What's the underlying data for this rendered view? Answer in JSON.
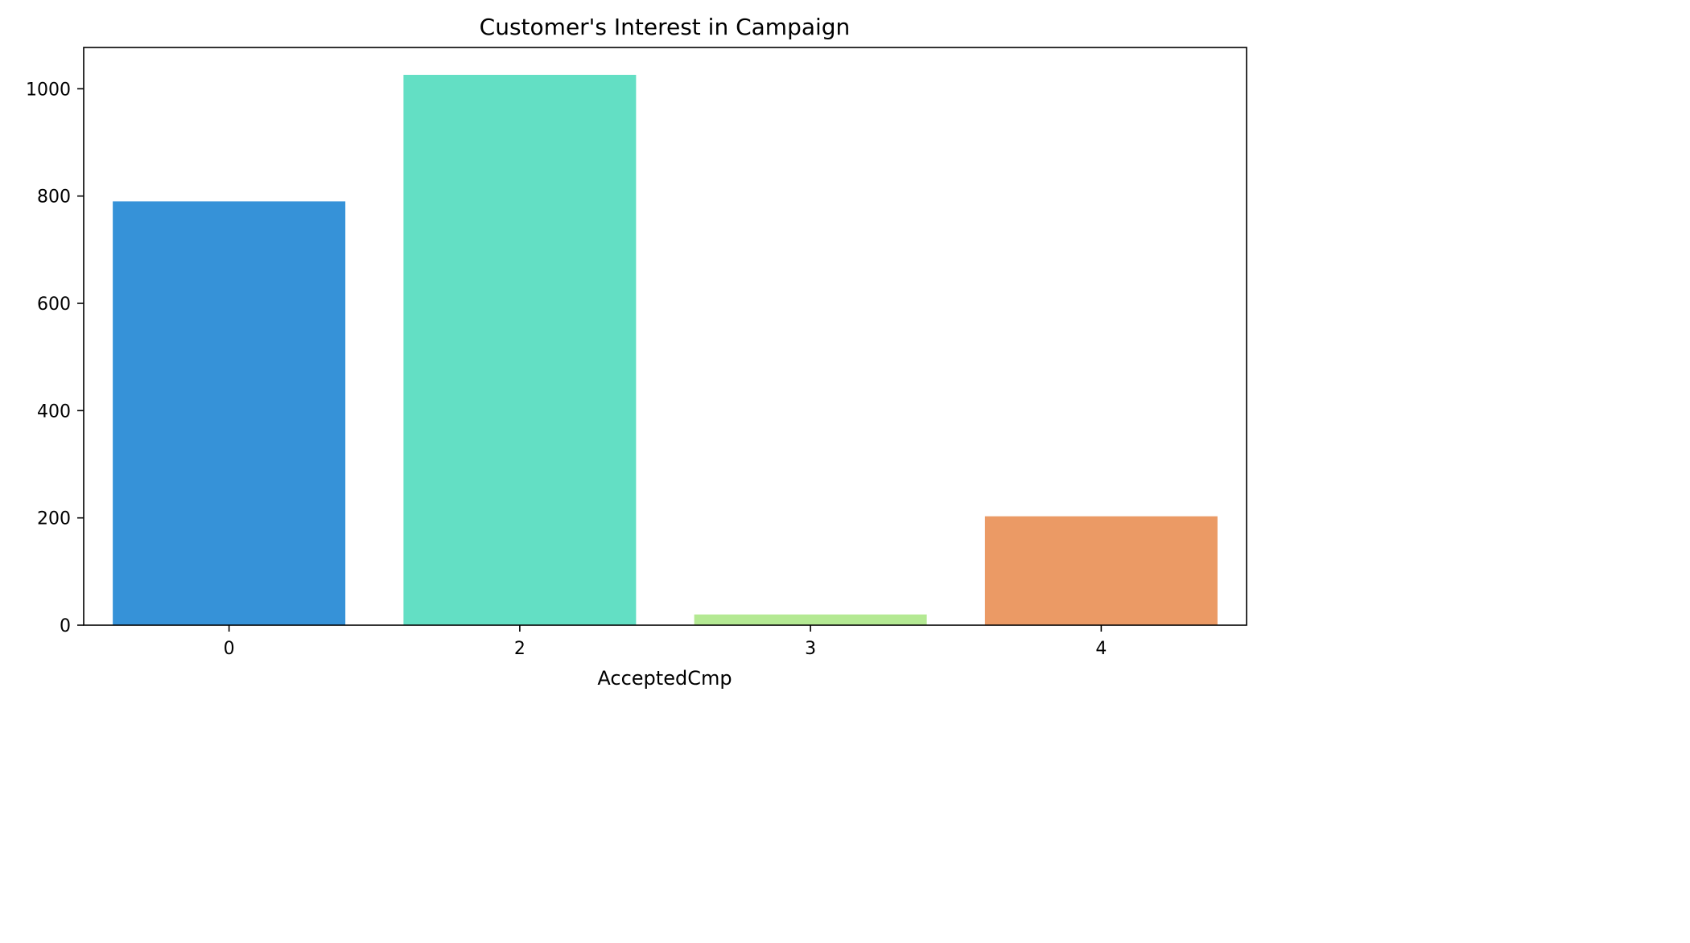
{
  "chart_data": {
    "type": "bar",
    "title": "Customer's Interest in Campaign",
    "xlabel": "AcceptedCmp",
    "ylabel": "",
    "categories": [
      "0",
      "2",
      "3",
      "4"
    ],
    "values": [
      790,
      1026,
      20,
      203
    ],
    "colors": [
      "#3692d8",
      "#63dfc4",
      "#b4e993",
      "#eb9a65"
    ],
    "ylim": [
      0,
      1077
    ],
    "yticks": [
      0,
      200,
      400,
      600,
      800,
      1000
    ],
    "grid": false,
    "legend": "none"
  }
}
